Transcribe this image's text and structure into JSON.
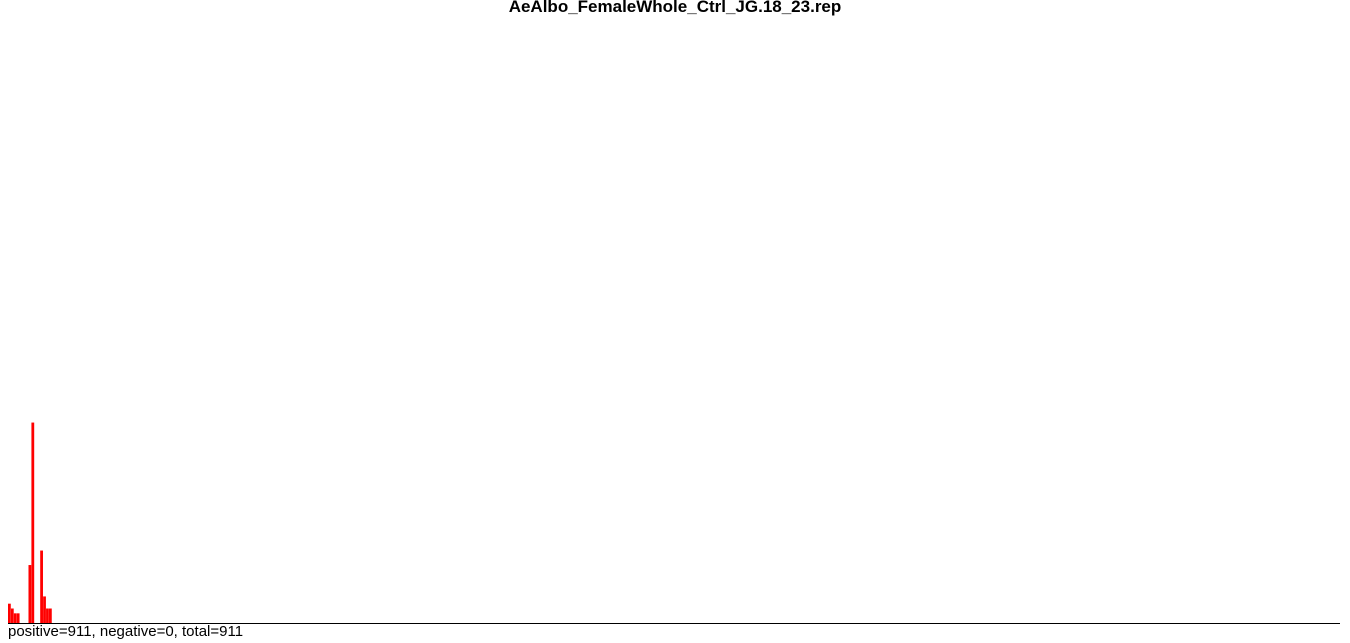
{
  "chart_data": {
    "type": "bar",
    "title": "AeAlbo_FemaleWhole_Ctrl_JG.18_23.rep",
    "summary": "positive=911, negative=0, total=911",
    "color_positive": "#ff0000",
    "axis_color": "#000000",
    "ylim": [
      0,
      100
    ],
    "grid": false,
    "bins": 455,
    "values": [
      4.0,
      3.0,
      2.0,
      2.0,
      0,
      0,
      0,
      12.0,
      41.5,
      0,
      0,
      15.0,
      5.5,
      3.0,
      3.0,
      0,
      0,
      0,
      0,
      0,
      0,
      0,
      0,
      0,
      0,
      0,
      0,
      0,
      0,
      0,
      0,
      0,
      0,
      0,
      0,
      0,
      0,
      0,
      0,
      0,
      0,
      0,
      0,
      0,
      0,
      0,
      0,
      0,
      0,
      0,
      0,
      0,
      0,
      0,
      0,
      0,
      0,
      0,
      0,
      0,
      0,
      0,
      0,
      0,
      0,
      0,
      0,
      0,
      0,
      0,
      0,
      0,
      0,
      0,
      0,
      0,
      0,
      0,
      0,
      0,
      0,
      0,
      0,
      0,
      0,
      0,
      0,
      0,
      0,
      0,
      0,
      0,
      0,
      0,
      0,
      0,
      0,
      0,
      0,
      0,
      0,
      0,
      0,
      0,
      0,
      0,
      0,
      0,
      0,
      0,
      0,
      0,
      0,
      0,
      0,
      0,
      0,
      0,
      0,
      0,
      0,
      0,
      0,
      0,
      0,
      0,
      0,
      0,
      0,
      0,
      0,
      0,
      0,
      0,
      0,
      0,
      0,
      0,
      0,
      0,
      0,
      0,
      0,
      0,
      0,
      0,
      0,
      0,
      0,
      0,
      0,
      0,
      0,
      0,
      0,
      0,
      0,
      0,
      0,
      0,
      0,
      0,
      0,
      0,
      0,
      0,
      0,
      0,
      0,
      0,
      0,
      0,
      0,
      0,
      0,
      0,
      0,
      0,
      0,
      0,
      0,
      0,
      0,
      0,
      0,
      0,
      0,
      0,
      0,
      0,
      0,
      0,
      0,
      0,
      0,
      0,
      0,
      0,
      0,
      0,
      0,
      0,
      0,
      0,
      0,
      0,
      0,
      0,
      0,
      0,
      0,
      0,
      0,
      0,
      0,
      0,
      0,
      0,
      0,
      0,
      0,
      0,
      0,
      0,
      0,
      0,
      0,
      0,
      0,
      0,
      0,
      0,
      0,
      0,
      0,
      0,
      0,
      0,
      0,
      0,
      0,
      0,
      0,
      0,
      0,
      0,
      0,
      0,
      0,
      0,
      0,
      0,
      0,
      0,
      0,
      0,
      0,
      0,
      0,
      0,
      0,
      0,
      0,
      0,
      0,
      0,
      0,
      0,
      0,
      0,
      0,
      0,
      0,
      0,
      0,
      0,
      0,
      0,
      0,
      0,
      0,
      0,
      0,
      0,
      0,
      0,
      0,
      0,
      0,
      0,
      0,
      0,
      0,
      0,
      0,
      0,
      0,
      0,
      0,
      0,
      0,
      0,
      0,
      0,
      0,
      0,
      0,
      0,
      0,
      0,
      0,
      0,
      0,
      0,
      0,
      0,
      0,
      0,
      0,
      0,
      0,
      0,
      0,
      0,
      0,
      0,
      0,
      0,
      0,
      0,
      0,
      0,
      0,
      0,
      0,
      0,
      0,
      0,
      0,
      0,
      0,
      0,
      0,
      0,
      0,
      0,
      0,
      0,
      0,
      0,
      0,
      0,
      0,
      0,
      0,
      0,
      0,
      0,
      0,
      0,
      0,
      0,
      0,
      0,
      0,
      0,
      0,
      0,
      0,
      0,
      0,
      0,
      0,
      0,
      0,
      0,
      0,
      0,
      0,
      0,
      0,
      0,
      0,
      0,
      0,
      0,
      0,
      0,
      0,
      0,
      0,
      0,
      0,
      0,
      0,
      0,
      0,
      0,
      0,
      0,
      0,
      0,
      0,
      0,
      0,
      0,
      0,
      0,
      0,
      0,
      0,
      0,
      0,
      0,
      0,
      0,
      0,
      0,
      0,
      0,
      0,
      0,
      0,
      0,
      0,
      0,
      0,
      0,
      0,
      0,
      0,
      0,
      0,
      0,
      0,
      0,
      0,
      0,
      0,
      0,
      0,
      0,
      0,
      0,
      0
    ]
  }
}
